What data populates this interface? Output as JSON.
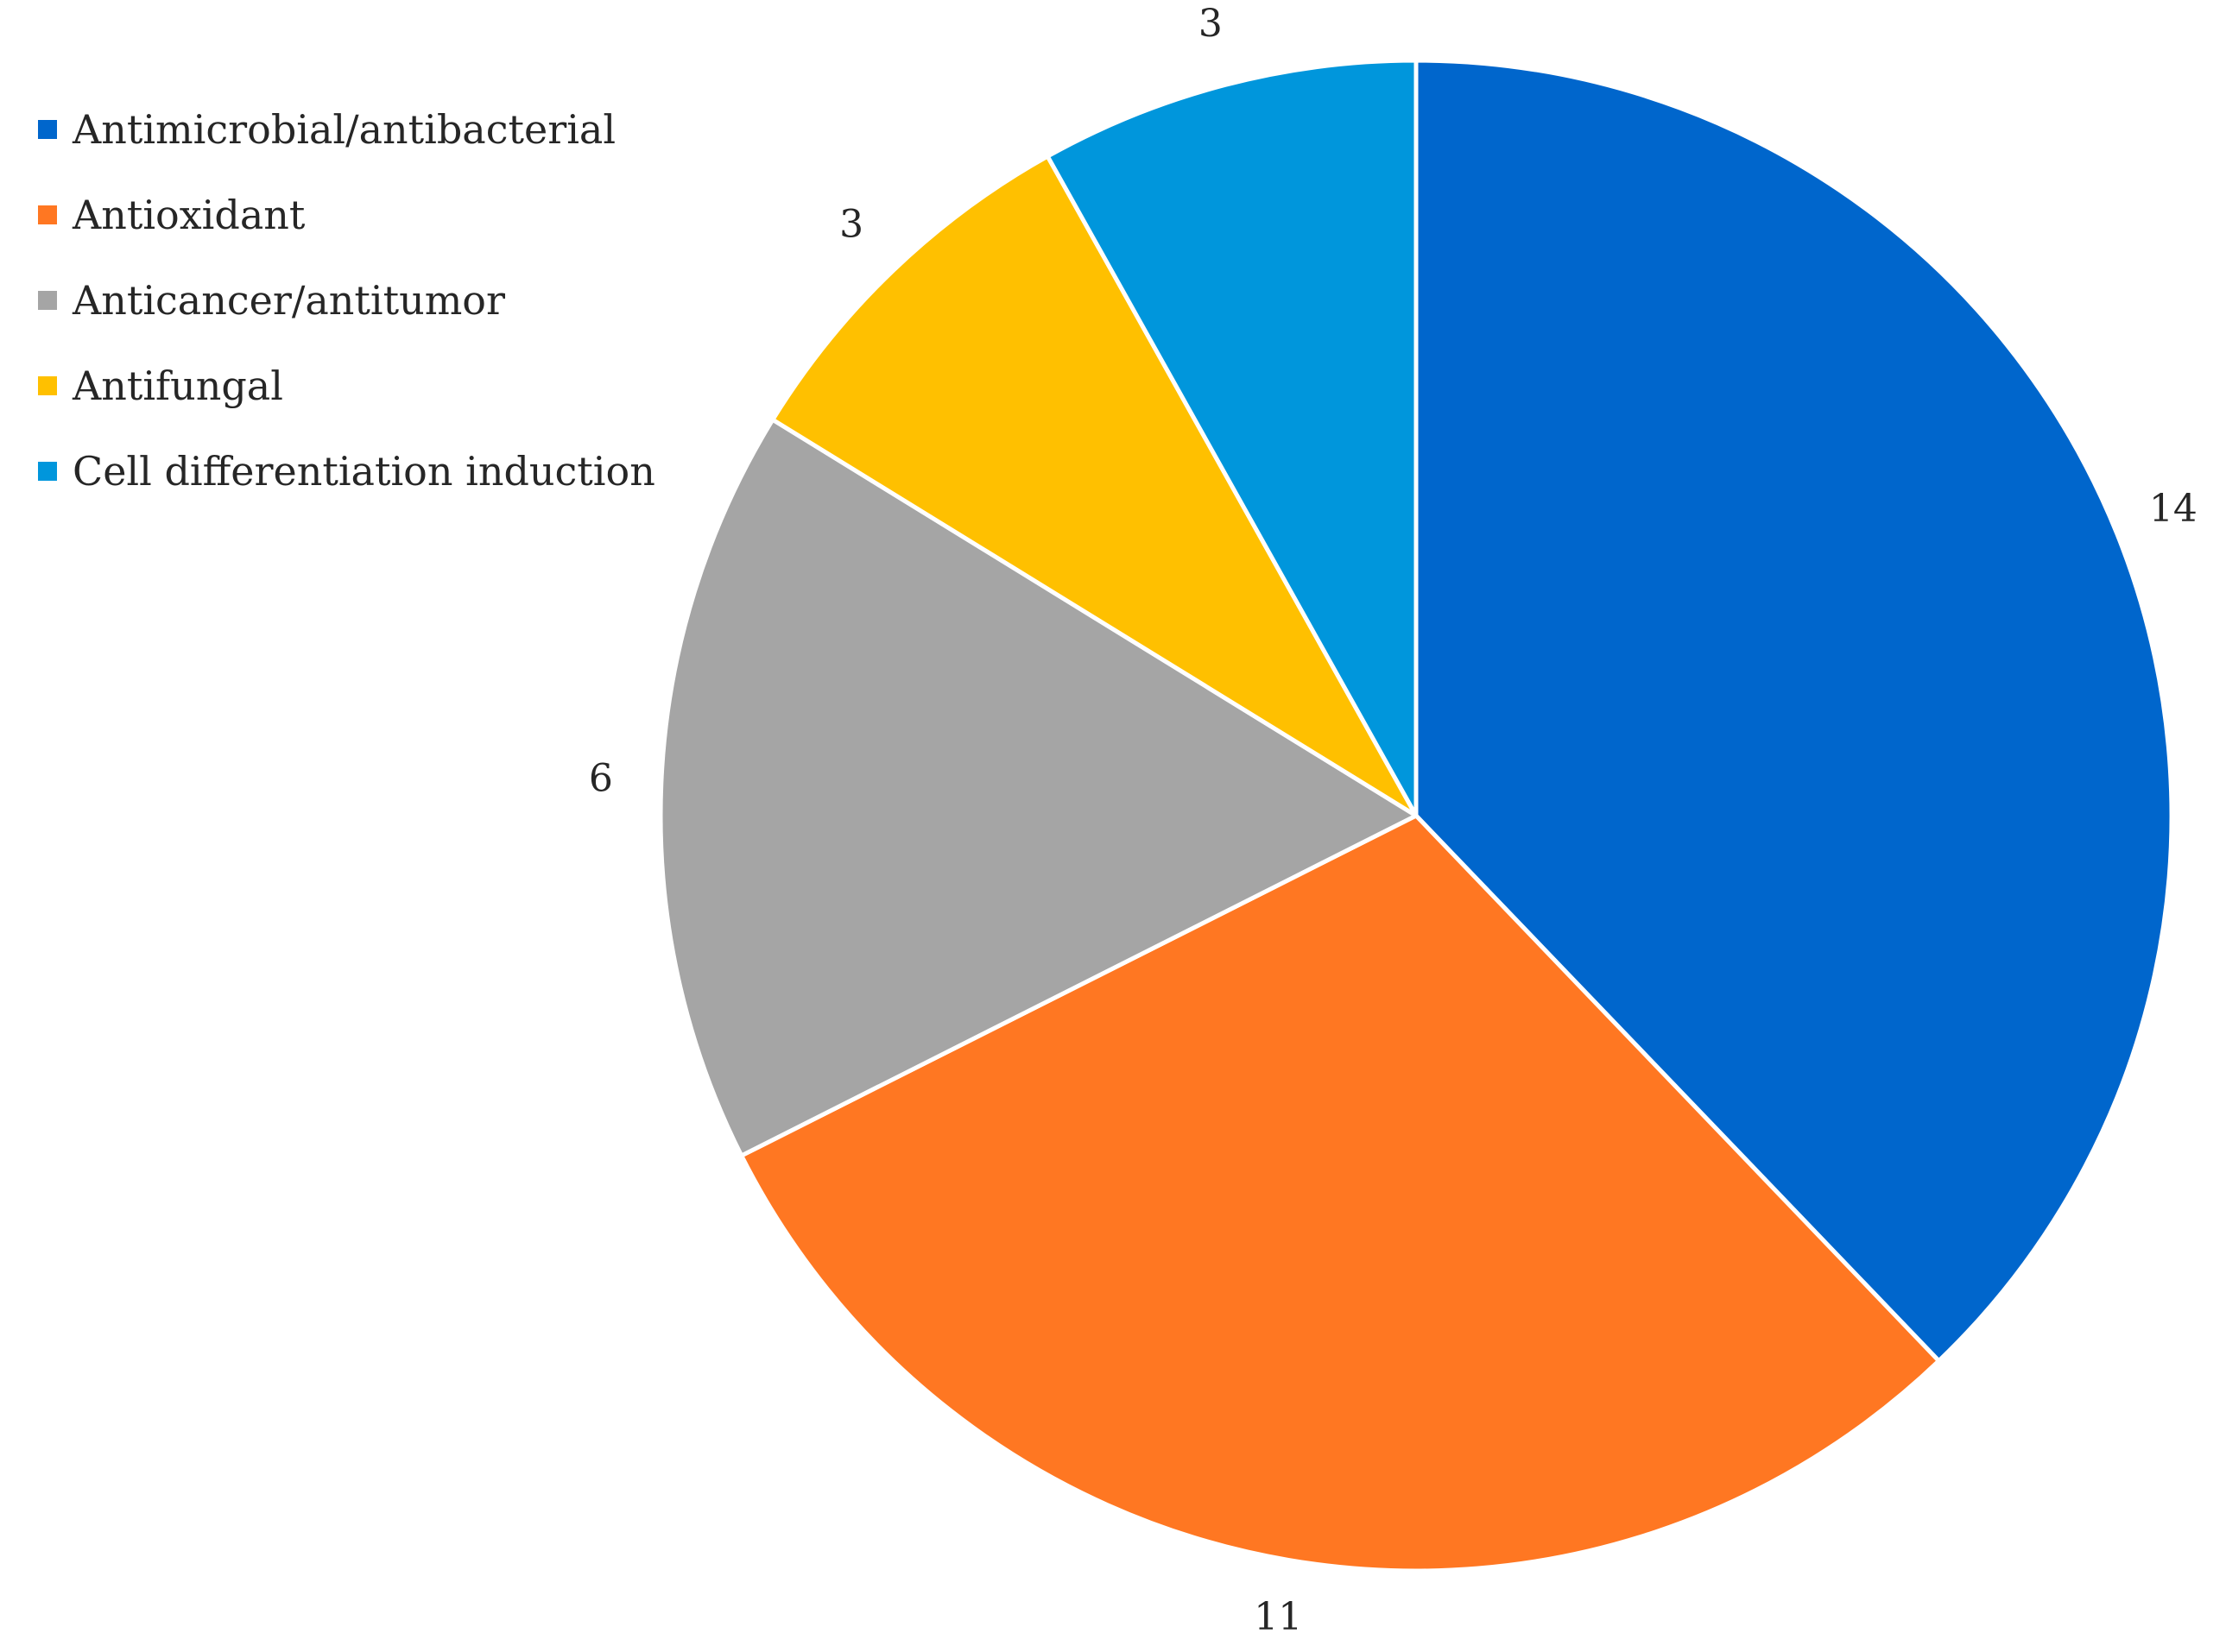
{
  "chart_data": {
    "type": "pie",
    "title": "",
    "legend_position": "top-left",
    "start": "12 o'clock",
    "direction": "clockwise",
    "slices": [
      {
        "label": "Antimicrobial/antibacterial",
        "value": 14,
        "value_label": "14",
        "color": "#0066CC"
      },
      {
        "label": "Antioxidant",
        "value": 11,
        "value_label": "11",
        "color": "#FF7722"
      },
      {
        "label": "Anticancer/antitumor",
        "value": 6,
        "value_label": "6",
        "color": "#A5A5A5"
      },
      {
        "label": "Antifungal",
        "value": 3,
        "value_label": "3",
        "color": "#FFC000"
      },
      {
        "label": "Cell differentiation induction",
        "value": 3,
        "value_label": "3",
        "color": "#0096DC"
      }
    ]
  }
}
